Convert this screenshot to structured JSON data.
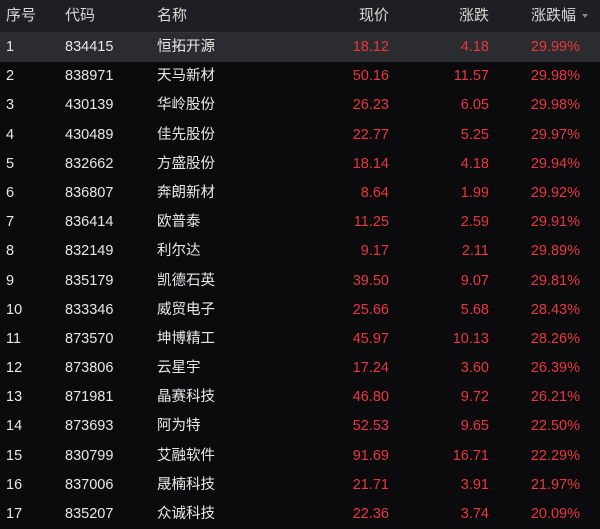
{
  "headers": [
    "序号",
    "代码",
    "名称",
    "现价",
    "涨跌",
    "涨跌幅"
  ],
  "sort_icon": "sort-desc-icon",
  "colors": {
    "up": "#e8383d",
    "background": "#0b0b0d",
    "header": "#1f1f23",
    "selected_row": "#2b2c30"
  },
  "selected_row": 1,
  "rows": [
    [
      "1",
      "834415",
      "恒拓开源",
      "18.12",
      "4.18",
      "29.99%"
    ],
    [
      "2",
      "838971",
      "天马新材",
      "50.16",
      "11.57",
      "29.98%"
    ],
    [
      "3",
      "430139",
      "华岭股份",
      "26.23",
      "6.05",
      "29.98%"
    ],
    [
      "4",
      "430489",
      "佳先股份",
      "22.77",
      "5.25",
      "29.97%"
    ],
    [
      "5",
      "832662",
      "方盛股份",
      "18.14",
      "4.18",
      "29.94%"
    ],
    [
      "6",
      "836807",
      "奔朗新材",
      "8.64",
      "1.99",
      "29.92%"
    ],
    [
      "7",
      "836414",
      "欧普泰",
      "11.25",
      "2.59",
      "29.91%"
    ],
    [
      "8",
      "832149",
      "利尔达",
      "9.17",
      "2.11",
      "29.89%"
    ],
    [
      "9",
      "835179",
      "凯德石英",
      "39.50",
      "9.07",
      "29.81%"
    ],
    [
      "10",
      "833346",
      "威贸电子",
      "25.66",
      "5.68",
      "28.43%"
    ],
    [
      "11",
      "873570",
      "坤博精工",
      "45.97",
      "10.13",
      "28.26%"
    ],
    [
      "12",
      "873806",
      "云星宇",
      "17.24",
      "3.60",
      "26.39%"
    ],
    [
      "13",
      "871981",
      "晶赛科技",
      "46.80",
      "9.72",
      "26.21%"
    ],
    [
      "14",
      "873693",
      "阿为特",
      "52.53",
      "9.65",
      "22.50%"
    ],
    [
      "15",
      "830799",
      "艾融软件",
      "91.69",
      "16.71",
      "22.29%"
    ],
    [
      "16",
      "837006",
      "晟楠科技",
      "21.71",
      "3.91",
      "21.97%"
    ],
    [
      "17",
      "835207",
      "众诚科技",
      "22.36",
      "3.74",
      "20.09%"
    ]
  ]
}
